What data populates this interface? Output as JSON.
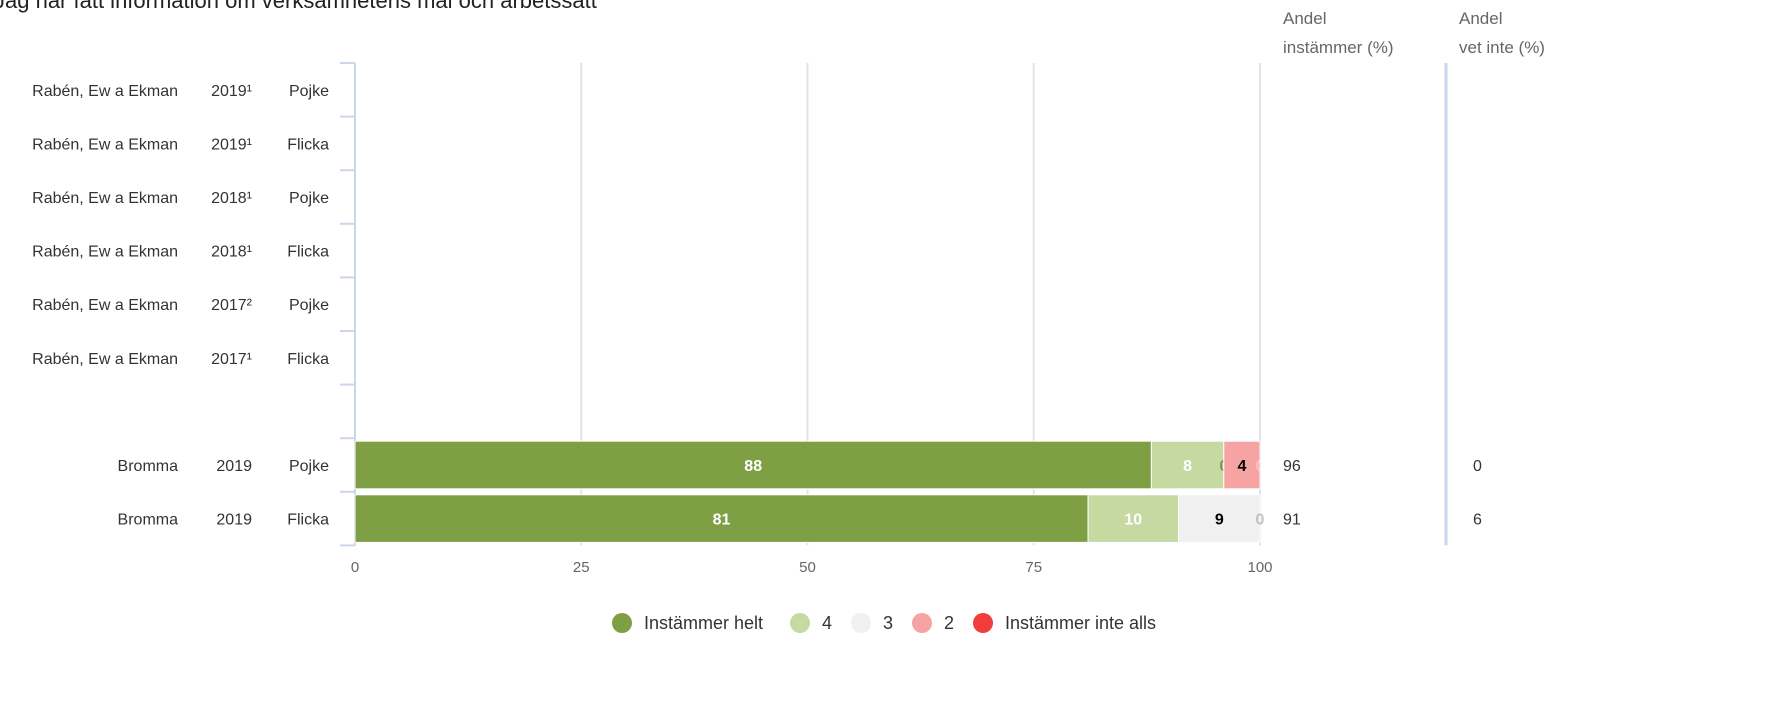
{
  "title": "Jag har fått information om verksamhetens mål och arbetssätt",
  "column_headers": {
    "agree": [
      "Andel",
      "instämmer (%)"
    ],
    "unknown": [
      "Andel",
      "vet inte (%)"
    ]
  },
  "chart_data": {
    "type": "bar",
    "orientation": "horizontal",
    "stacked": true,
    "xlim": [
      0,
      100
    ],
    "xticks": [
      0,
      25,
      50,
      75,
      100
    ],
    "grid": true,
    "legend_position": "bottom",
    "rows": [
      {
        "label": [
          "Rabén, Ew a Ekman",
          "2019¹",
          "Pojke"
        ],
        "values": null,
        "agree": "",
        "unknown": ""
      },
      {
        "label": [
          "Rabén, Ew a Ekman",
          "2019¹",
          "Flicka"
        ],
        "values": null,
        "agree": "",
        "unknown": ""
      },
      {
        "label": [
          "Rabén, Ew a Ekman",
          "2018¹",
          "Pojke"
        ],
        "values": null,
        "agree": "",
        "unknown": ""
      },
      {
        "label": [
          "Rabén, Ew a Ekman",
          "2018¹",
          "Flicka"
        ],
        "values": null,
        "agree": "",
        "unknown": ""
      },
      {
        "label": [
          "Rabén, Ew a Ekman",
          "2017²",
          "Pojke"
        ],
        "values": null,
        "agree": "",
        "unknown": ""
      },
      {
        "label": [
          "Rabén, Ew a Ekman",
          "2017¹",
          "Flicka"
        ],
        "values": null,
        "agree": "",
        "unknown": ""
      },
      {
        "label": [
          "",
          "",
          ""
        ],
        "values": null,
        "agree": "",
        "unknown": ""
      },
      {
        "label": [
          "Bromma",
          "2019",
          "Pojke"
        ],
        "values": [
          88,
          8,
          0,
          4,
          0
        ],
        "agree": "96",
        "unknown": "0"
      },
      {
        "label": [
          "Bromma",
          "2019",
          "Flicka"
        ],
        "values": [
          81,
          10,
          9,
          0,
          0
        ],
        "agree": "91",
        "unknown": "6"
      }
    ],
    "series": [
      {
        "name": "Instämmer helt",
        "color": "#7f9f45",
        "label_color": "#ffffff"
      },
      {
        "name": "4",
        "color": "#c5d9a0",
        "label_color": "#ffffff"
      },
      {
        "name": "3",
        "color": "#f0f0f0",
        "label_color": "#000000"
      },
      {
        "name": "2",
        "color": "#f5a3a3",
        "label_color": "#000000"
      },
      {
        "name": "Instämmer inte alls",
        "color": "#f23c3c",
        "label_color": "#ffffff"
      }
    ]
  }
}
